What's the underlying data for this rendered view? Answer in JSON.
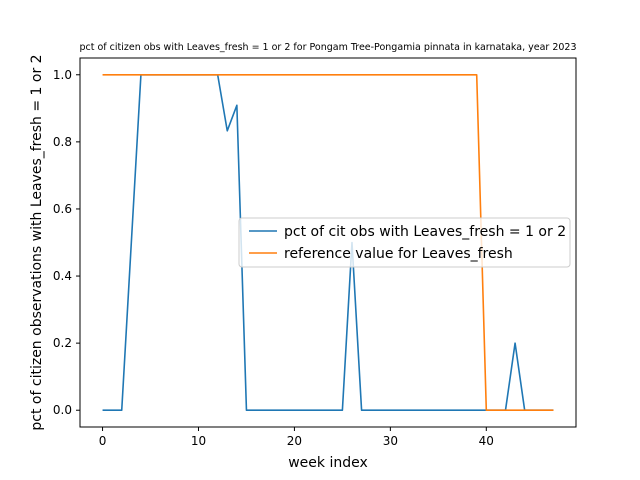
{
  "chart_data": {
    "type": "line",
    "title": "pct of citizen obs with Leaves_fresh = 1 or 2 for Pongam Tree-Pongamia pinnata in karnataka, year 2023",
    "xlabel": "week index",
    "ylabel": "pct of citizen observations with Leaves_fresh = 1 or 2",
    "xlim": [
      -2.35,
      49.35
    ],
    "ylim": [
      -0.05,
      1.05
    ],
    "xticks": [
      0,
      10,
      20,
      30,
      40
    ],
    "yticks": [
      0.0,
      0.2,
      0.4,
      0.6,
      0.8,
      1.0
    ],
    "xtick_labels": [
      "0",
      "10",
      "20",
      "30",
      "40"
    ],
    "ytick_labels": [
      "0.0",
      "0.2",
      "0.4",
      "0.6",
      "0.8",
      "1.0"
    ],
    "grid": false,
    "legend_position": "center-right",
    "series": [
      {
        "name": "pct of cit obs with Leaves_fresh = 1 or 2",
        "color": "#1f77b4",
        "x": [
          0,
          1,
          2,
          3,
          4,
          5,
          6,
          7,
          8,
          9,
          10,
          11,
          12,
          13,
          14,
          15,
          16,
          17,
          18,
          19,
          20,
          21,
          22,
          23,
          24,
          25,
          26,
          27,
          28,
          29,
          30,
          31,
          32,
          33,
          34,
          35,
          36,
          37,
          38,
          39,
          40,
          41,
          42,
          43,
          44,
          45,
          46,
          47
        ],
        "y": [
          0,
          0,
          0,
          0.5,
          1,
          1,
          1,
          1,
          1,
          1,
          1,
          1,
          1,
          0.833,
          0.909,
          0,
          0,
          0,
          0,
          0,
          0,
          0,
          0,
          0,
          0,
          0,
          0.5,
          0,
          0,
          0,
          0,
          0,
          0,
          0,
          0,
          0,
          0,
          0,
          0,
          0,
          0,
          0,
          0,
          0.2,
          0,
          0,
          0,
          0
        ]
      },
      {
        "name": "reference value for Leaves_fresh",
        "color": "#ff7f0e",
        "x": [
          0,
          1,
          2,
          3,
          4,
          5,
          6,
          7,
          8,
          9,
          10,
          11,
          12,
          13,
          14,
          15,
          16,
          17,
          18,
          19,
          20,
          21,
          22,
          23,
          24,
          25,
          26,
          27,
          28,
          29,
          30,
          31,
          32,
          33,
          34,
          35,
          36,
          37,
          38,
          39,
          40,
          41,
          42,
          43,
          44,
          45,
          46,
          47
        ],
        "y": [
          1,
          1,
          1,
          1,
          1,
          1,
          1,
          1,
          1,
          1,
          1,
          1,
          1,
          1,
          1,
          1,
          1,
          1,
          1,
          1,
          1,
          1,
          1,
          1,
          1,
          1,
          1,
          1,
          1,
          1,
          1,
          1,
          1,
          1,
          1,
          1,
          1,
          1,
          1,
          1,
          0,
          0,
          0,
          0,
          0,
          0,
          0,
          0
        ]
      }
    ]
  }
}
